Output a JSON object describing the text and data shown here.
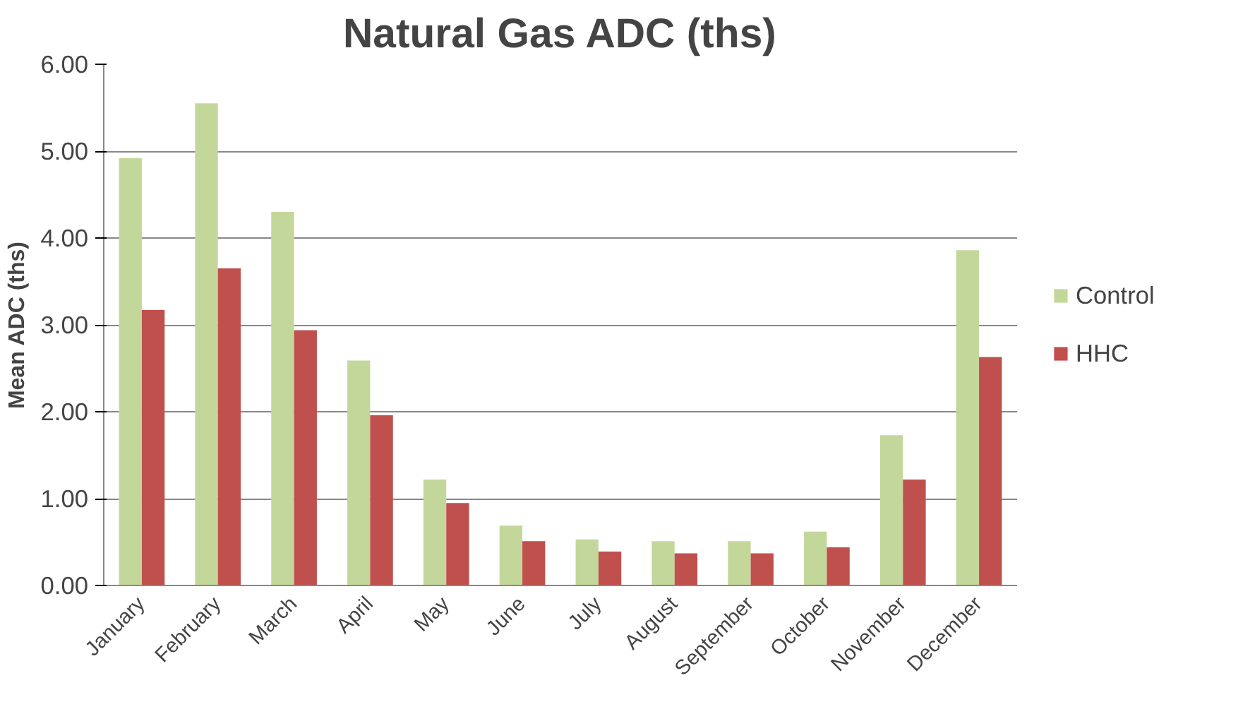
{
  "chart_data": {
    "type": "bar",
    "title": "Natural Gas ADC (ths)",
    "ylabel": "Mean ADC (ths)",
    "categories": [
      "January",
      "February",
      "March",
      "April",
      "May",
      "June",
      "July",
      "August",
      "September",
      "October",
      "November",
      "December"
    ],
    "series": [
      {
        "name": "Control",
        "color": "#c4d79b",
        "values": [
          4.92,
          5.55,
          4.3,
          2.59,
          1.22,
          0.69,
          0.53,
          0.51,
          0.51,
          0.62,
          1.73,
          3.86
        ]
      },
      {
        "name": "HHC",
        "color": "#c0504d",
        "values": [
          3.17,
          3.65,
          2.94,
          1.96,
          0.95,
          0.51,
          0.39,
          0.37,
          0.37,
          0.44,
          1.22,
          2.63
        ]
      }
    ],
    "ylim": [
      0,
      6
    ],
    "yticks": [
      {
        "value": 0,
        "label": "0.00"
      },
      {
        "value": 1,
        "label": "1.00"
      },
      {
        "value": 2,
        "label": "2.00"
      },
      {
        "value": 3,
        "label": "3.00"
      },
      {
        "value": 4,
        "label": "4.00"
      },
      {
        "value": 5,
        "label": "5.00"
      },
      {
        "value": 6,
        "label": "6.00"
      }
    ],
    "grid": "y",
    "legend": "right"
  }
}
